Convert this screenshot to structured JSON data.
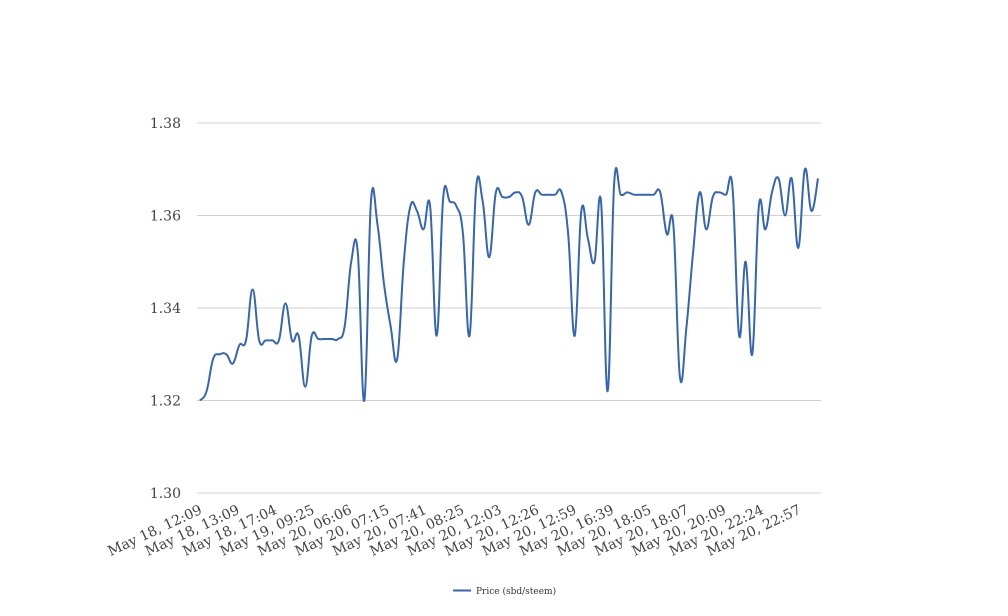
{
  "chart_data": {
    "type": "line",
    "title": "",
    "xlabel": "",
    "ylabel": "",
    "ylim": [
      1.3,
      1.38
    ],
    "y_ticks": [
      "1.30",
      "1.32",
      "1.34",
      "1.36",
      "1.38"
    ],
    "x_tick_labels": [
      "May 18, 12:09",
      "May 18, 13:09",
      "May 18, 17:04",
      "May 19, 09:25",
      "May 20, 06:06",
      "May 20, 07:15",
      "May 20, 07:41",
      "May 20, 08:25",
      "May 20, 12:03",
      "May 20, 12:26",
      "May 20, 12:59",
      "May 20, 16:39",
      "May 20, 18:05",
      "May 20, 18:07",
      "May 20, 20:09",
      "May 20, 22:24",
      "May 20, 22:57"
    ],
    "grid": true,
    "legend_position": "bottom",
    "series_color": "#3565b5",
    "series": [
      {
        "name": "Price (sbd/steem)",
        "values": [
          1.32,
          1.322,
          1.329,
          1.33,
          1.33,
          1.328,
          1.332,
          1.333,
          1.344,
          1.333,
          1.333,
          1.333,
          1.333,
          1.341,
          1.333,
          1.334,
          1.323,
          1.334,
          1.3333,
          1.3333,
          1.3333,
          1.3333,
          1.336,
          1.35,
          1.352,
          1.32,
          1.363,
          1.358,
          1.345,
          1.336,
          1.329,
          1.35,
          1.362,
          1.361,
          1.357,
          1.362,
          1.334,
          1.364,
          1.363,
          1.362,
          1.356,
          1.334,
          1.366,
          1.363,
          1.351,
          1.365,
          1.364,
          1.364,
          1.365,
          1.364,
          1.358,
          1.365,
          1.3645,
          1.3645,
          1.3645,
          1.365,
          1.356,
          1.334,
          1.361,
          1.355,
          1.35,
          1.363,
          1.322,
          1.367,
          1.3645,
          1.365,
          1.3645,
          1.3645,
          1.3645,
          1.3645,
          1.365,
          1.356,
          1.358,
          1.325,
          1.336,
          1.352,
          1.365,
          1.357,
          1.364,
          1.365,
          1.3645,
          1.366,
          1.334,
          1.35,
          1.33,
          1.362,
          1.357,
          1.365,
          1.368,
          1.36,
          1.368,
          1.353,
          1.37,
          1.361,
          1.368
        ]
      }
    ]
  }
}
